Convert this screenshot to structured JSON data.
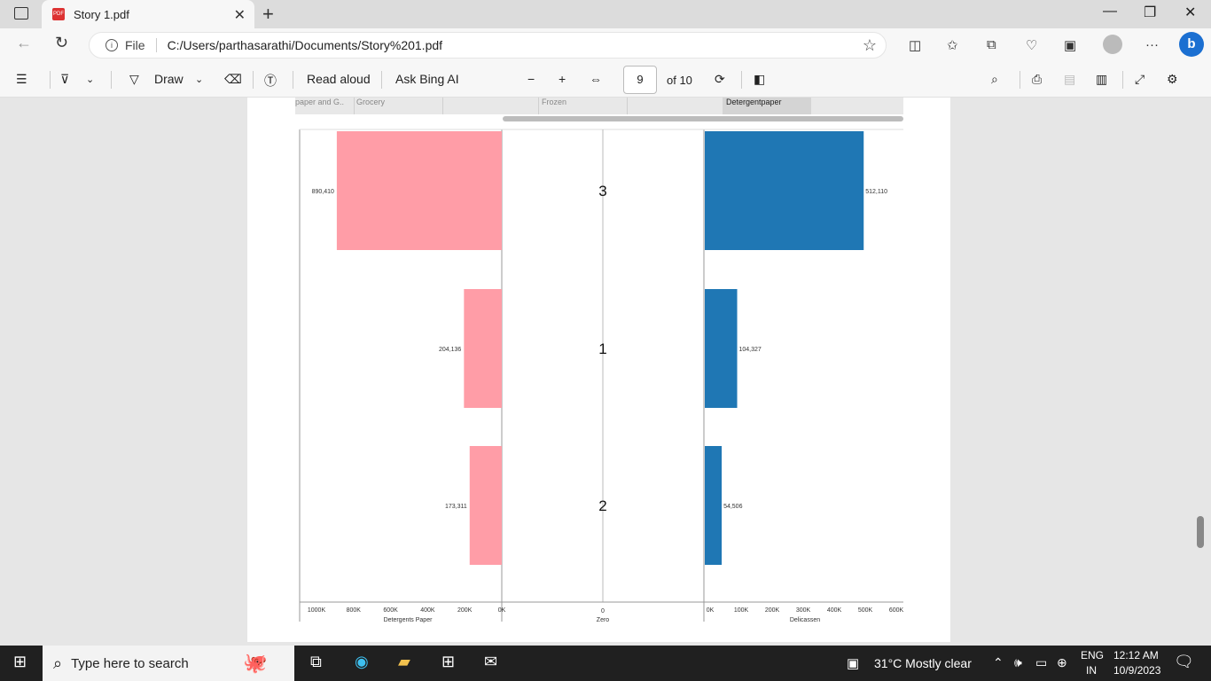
{
  "browser": {
    "tab_title": "Story 1.pdf",
    "pdf_badge": "PDF",
    "new_tab_symbol": "+",
    "close_symbol": "✕",
    "address_prefix": "File",
    "url": "C:/Users/parthasarathi/Documents/Story%201.pdf"
  },
  "pdf_toolbar": {
    "draw_label": "Draw",
    "read_aloud_label": "Read aloud",
    "ask_bing_label": "Ask Bing AI",
    "page_number": "9",
    "page_total": "of 10"
  },
  "filter_bar": {
    "items": [
      "paper and G..",
      "Grocery",
      "Frozen",
      "Detergentpaper"
    ],
    "selected": "Detergentpaper"
  },
  "chart_data": {
    "type": "bar",
    "orientation": "horizontal",
    "categories": [
      "3",
      "1",
      "2"
    ],
    "series": [
      {
        "name": "Detergents Paper",
        "values": [
          890410,
          204136,
          173311
        ],
        "labels": [
          "890,410",
          "204,136",
          "173,311"
        ],
        "color": "#ff9da7",
        "ticks": [
          "1000K",
          "800K",
          "600K",
          "400K",
          "200K",
          "0K"
        ],
        "xlim": [
          1000000,
          0
        ]
      },
      {
        "name": "Delicassen",
        "values": [
          512110,
          104327,
          54506
        ],
        "labels": [
          "512,110",
          "104,327",
          "54,506"
        ],
        "color": "#1f77b4",
        "ticks": [
          "0K",
          "100K",
          "200K",
          "300K",
          "400K",
          "500K",
          "600K"
        ],
        "xlim": [
          0,
          600000
        ]
      }
    ],
    "center_axis": {
      "label": "Zero",
      "tick": "0"
    }
  },
  "taskbar": {
    "search_placeholder": "Type here to search",
    "weather": "31°C  Mostly clear",
    "lang_top": "ENG",
    "lang_bottom": "IN",
    "time": "12:12 AM",
    "date": "10/9/2023"
  },
  "colors": {
    "accent": "#1b6fd1",
    "taskbar": "#202020"
  }
}
